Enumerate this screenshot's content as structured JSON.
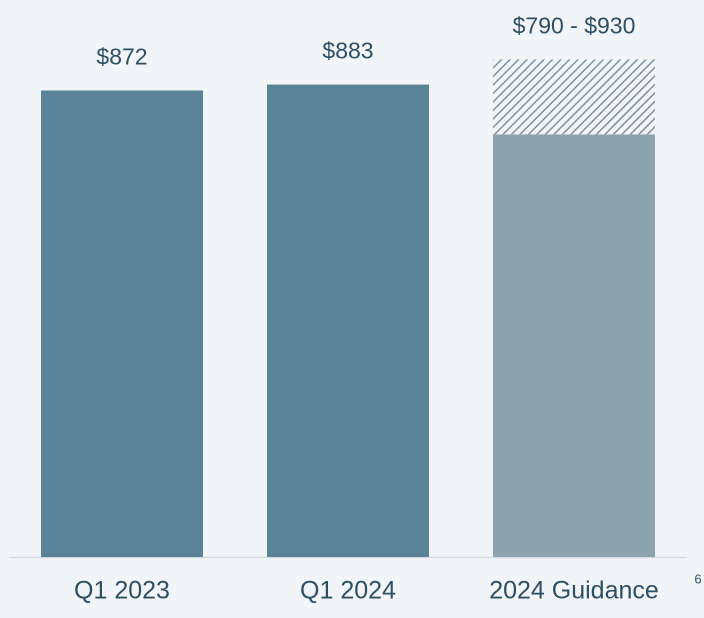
{
  "chart_data": {
    "type": "bar",
    "categories": [
      "Q1 2023",
      "Q1 2024",
      "2024 Guidance"
    ],
    "values": [
      872,
      883,
      790
    ],
    "range_high": [
      null,
      null,
      930
    ],
    "value_labels": [
      "$872",
      "$883",
      "$790 - $930"
    ],
    "colors": [
      "#5b8398",
      "#5b8398",
      "#8ca3ae"
    ],
    "hatch_color": "#7d939f",
    "ylim": [
      0,
      1000
    ],
    "footnote": "6"
  }
}
